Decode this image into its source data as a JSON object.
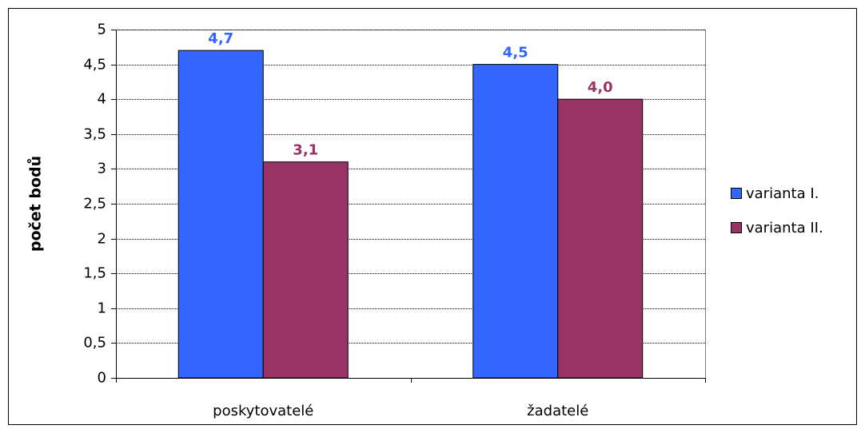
{
  "chart_data": {
    "type": "bar",
    "y_label": "počet bodů",
    "categories": [
      "poskytovatelé",
      "žadatelé"
    ],
    "series": [
      {
        "name": "varianta I.",
        "color": "#3366ff",
        "values": [
          4.7,
          4.5
        ],
        "value_labels": [
          "4,7",
          "4,5"
        ]
      },
      {
        "name": "varianta II.",
        "color": "#993366",
        "values": [
          3.1,
          4.0
        ],
        "value_labels": [
          "3,1",
          "4,0"
        ]
      }
    ],
    "ylim": [
      0,
      5
    ],
    "yticks": [
      0,
      {
        "value": 0.5,
        "label": "0,5"
      },
      1,
      {
        "value": 1.5,
        "label": "1,5"
      },
      2,
      {
        "value": 2.5,
        "label": "2,5"
      },
      3,
      {
        "value": 3.5,
        "label": "3,5"
      },
      4,
      {
        "value": 4.5,
        "label": "4,5"
      },
      5
    ],
    "grid": true,
    "legend": "right"
  }
}
